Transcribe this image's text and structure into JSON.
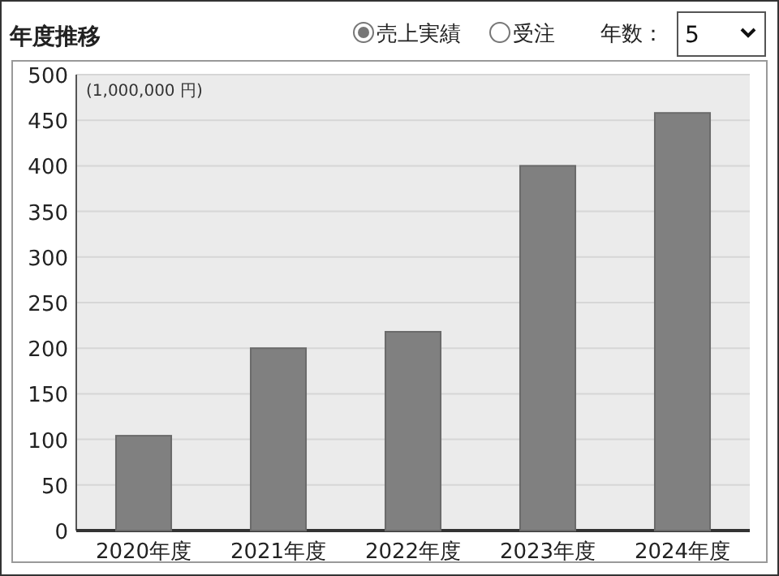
{
  "chart_data": {
    "type": "bar",
    "title": "年度推移",
    "categories": [
      "2020年度",
      "2021年度",
      "2022年度",
      "2023年度",
      "2024年度"
    ],
    "values": [
      104,
      200,
      218,
      400,
      458
    ],
    "color": "#808080",
    "ylim": [
      0,
      500
    ],
    "yticks": [
      0,
      50,
      100,
      150,
      200,
      250,
      300,
      350,
      400,
      450,
      500
    ],
    "grid": "y",
    "annotations": [
      "(1,000,000 円)",
      "売上実績",
      "受注",
      "年数：",
      "5"
    ]
  }
}
